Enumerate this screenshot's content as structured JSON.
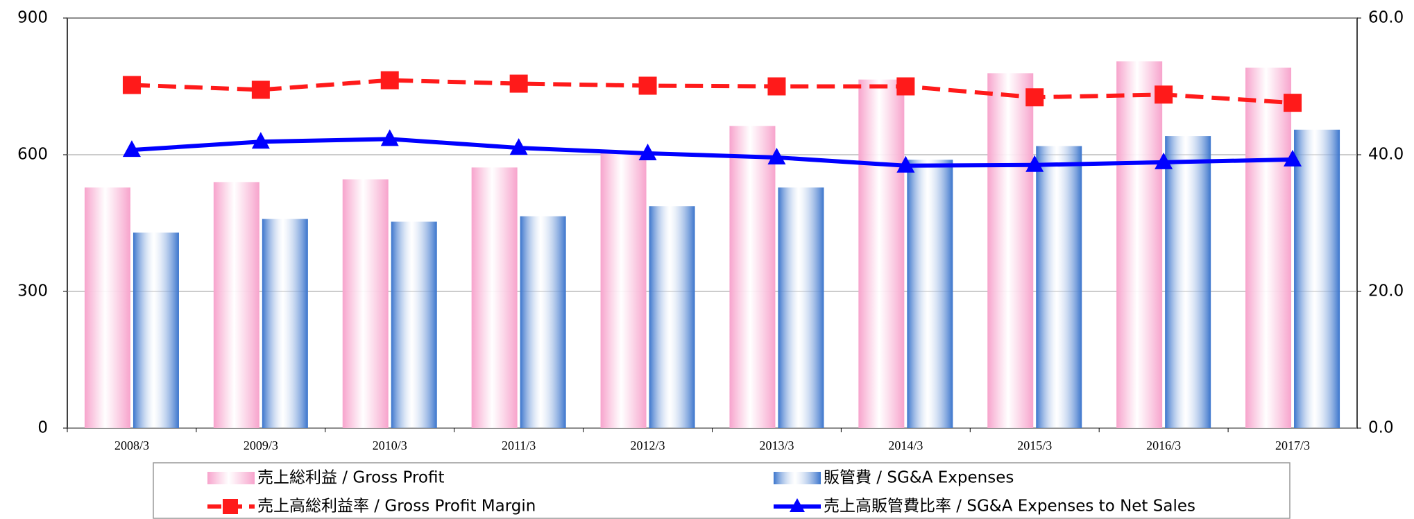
{
  "chart_data": {
    "type": "bar_line",
    "categories": [
      "2008/3",
      "2009/3",
      "2010/3",
      "2011/3",
      "2012/3",
      "2013/3",
      "2014/3",
      "2015/3",
      "2016/3",
      "2017/3"
    ],
    "series": [
      {
        "name": "売上総利益 / Gross Profit",
        "type": "bar",
        "color": "#f7a3cc",
        "values": [
          528,
          540,
          546,
          572,
          605,
          663,
          765,
          779,
          805,
          791
        ]
      },
      {
        "name": "販管費 / SG&A Expenses",
        "type": "bar",
        "color": "#3a74cc",
        "values": [
          429,
          459,
          453,
          465,
          487,
          528,
          589,
          619,
          641,
          655
        ]
      },
      {
        "name": "売上高総利益率 / Gross Profit Margin",
        "type": "line",
        "axis": "y2",
        "color": "#ff1a1a",
        "dash": true,
        "marker": "square",
        "values": [
          50.2,
          49.5,
          50.9,
          50.4,
          50.1,
          50.0,
          50.0,
          48.4,
          48.8,
          47.6
        ]
      },
      {
        "name": "売上高販管費比率 / SG&A Expenses to Net Sales",
        "type": "line",
        "axis": "y2",
        "color": "#0000ff",
        "dash": false,
        "marker": "triangle",
        "values": [
          40.7,
          41.9,
          42.3,
          41.0,
          40.2,
          39.6,
          38.4,
          38.5,
          38.9,
          39.3
        ]
      }
    ],
    "ylim": [
      0,
      900
    ],
    "yticks": [
      0,
      300,
      600,
      900
    ],
    "y2lim": [
      0,
      60
    ],
    "y2ticks": [
      {
        "value": 0,
        "label": "0.0"
      },
      {
        "value": 20,
        "label": "20.0"
      },
      {
        "value": 40,
        "label": "40.0"
      },
      {
        "value": 60,
        "label": "60.0"
      }
    ],
    "grid": true,
    "legend": "bottom"
  }
}
